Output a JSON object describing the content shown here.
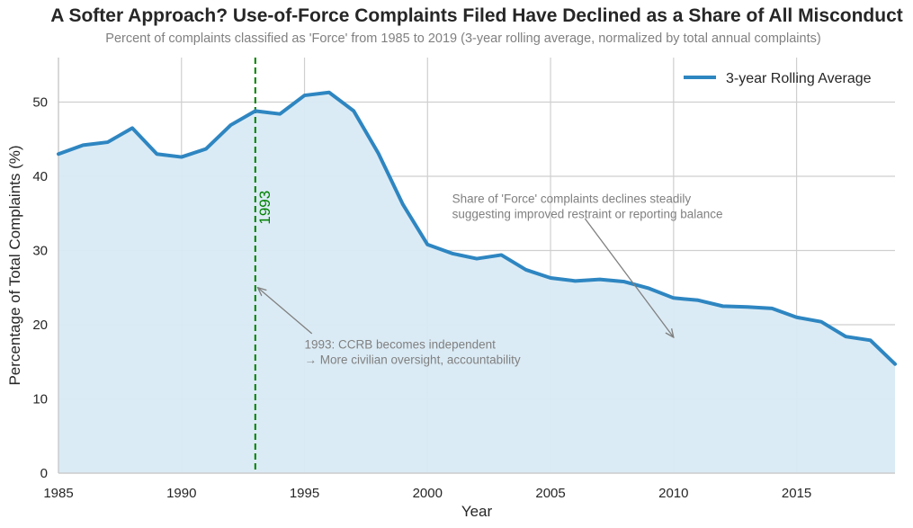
{
  "chart_data": {
    "type": "area",
    "title": "A Softer Approach? Use-of-Force Complaints Filed Have Declined as a Share of All Misconduct",
    "subtitle": "Percent of complaints classified as 'Force' from 1985 to 2019 (3-year rolling average, normalized by total annual complaints)",
    "xlabel": "Year",
    "ylabel": "Percentage of Total Complaints (%)",
    "xlim": [
      1985,
      2019
    ],
    "ylim": [
      0,
      56
    ],
    "xticks": [
      1985,
      1990,
      1995,
      2000,
      2005,
      2010,
      2015
    ],
    "yticks": [
      0,
      10,
      20,
      30,
      40,
      50
    ],
    "grid": true,
    "legend_position": "top-right",
    "series": [
      {
        "name": "3-year Rolling Average",
        "color": "#2e86c1",
        "fill_color": "#d9eaf4",
        "x": [
          1985,
          1986,
          1987,
          1988,
          1989,
          1990,
          1991,
          1992,
          1993,
          1994,
          1995,
          1996,
          1997,
          1998,
          1999,
          2000,
          2001,
          2002,
          2003,
          2004,
          2005,
          2006,
          2007,
          2008,
          2009,
          2010,
          2011,
          2012,
          2013,
          2014,
          2015,
          2016,
          2017,
          2018,
          2019
        ],
        "y": [
          43.0,
          44.2,
          44.6,
          46.5,
          43.0,
          42.6,
          43.7,
          46.9,
          48.8,
          48.4,
          50.9,
          51.3,
          48.8,
          43.1,
          36.2,
          30.8,
          29.6,
          28.9,
          29.4,
          27.4,
          26.3,
          25.9,
          26.1,
          25.8,
          24.9,
          23.6,
          23.3,
          22.5,
          22.4,
          22.2,
          21.0,
          20.4,
          18.4,
          17.9,
          14.7
        ]
      }
    ],
    "vline": {
      "x": 1993,
      "label": "1993",
      "color": "#008000"
    },
    "annotations": [
      {
        "lines": [
          "1993: CCRB becomes independent",
          "→ More civilian oversight, accountability"
        ],
        "text_x": 1995,
        "text_y": 16.8,
        "arrow_from": [
          1995.3,
          18.8
        ],
        "arrow_to": [
          1993.1,
          25.0
        ]
      },
      {
        "lines": [
          "Share of 'Force' complaints declines steadily",
          "suggesting improved restraint or reporting balance"
        ],
        "text_x": 2001,
        "text_y": 36.4,
        "arrow_from": [
          2006.4,
          34.3
        ],
        "arrow_to": [
          2010,
          18.3
        ]
      }
    ]
  }
}
